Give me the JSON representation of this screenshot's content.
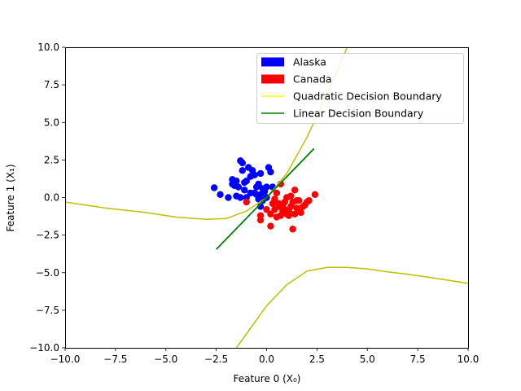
{
  "chart_data": {
    "type": "scatter",
    "xlabel": "Feature 0 (X₀)",
    "ylabel": "Feature 1 (X₁)",
    "xlim": [
      -10,
      10
    ],
    "ylim": [
      -10,
      10
    ],
    "xticks": [
      -10,
      -7.5,
      -5,
      -2.5,
      0,
      2.5,
      5,
      7.5,
      10
    ],
    "yticks": [
      -10,
      -7.5,
      -5,
      -2.5,
      0,
      2.5,
      5,
      7.5,
      10
    ],
    "xtick_labels": [
      "−10.0",
      "−7.5",
      "−5.0",
      "−2.5",
      "0.0",
      "2.5",
      "5.0",
      "7.5",
      "10.0"
    ],
    "ytick_labels": [
      "−10.0",
      "−7.5",
      "−5.0",
      "−2.5",
      "0.0",
      "2.5",
      "5.0",
      "7.5",
      "10.0"
    ],
    "grid": false,
    "legend_position": "top-right",
    "legend": [
      {
        "label": "Alaska",
        "kind": "patch",
        "color": "#0000ff"
      },
      {
        "label": "Canada",
        "kind": "patch",
        "color": "#ff0000"
      },
      {
        "label": "Quadratic Decision Boundary",
        "kind": "line",
        "color": "#ffff00"
      },
      {
        "label": "Linear Decision Boundary",
        "kind": "line",
        "color": "#008000"
      }
    ],
    "series": [
      {
        "name": "Alaska",
        "color": "#0000ff",
        "points": [
          [
            -2.6,
            0.65
          ],
          [
            -2.3,
            0.2
          ],
          [
            -1.9,
            0.0
          ],
          [
            -1.7,
            1.2
          ],
          [
            -1.6,
            0.8
          ],
          [
            -1.5,
            1.1
          ],
          [
            -1.4,
            0.7
          ],
          [
            -1.3,
            2.45
          ],
          [
            -1.2,
            2.3
          ],
          [
            -1.2,
            1.8
          ],
          [
            -1.1,
            1.0
          ],
          [
            -1.0,
            0.0
          ],
          [
            -0.9,
            2.0
          ],
          [
            -0.8,
            0.3
          ],
          [
            -0.7,
            1.8
          ],
          [
            -0.6,
            1.5
          ],
          [
            -0.5,
            0.7
          ],
          [
            -0.4,
            0.9
          ],
          [
            -0.3,
            1.6
          ],
          [
            -0.2,
            -0.2
          ],
          [
            -0.1,
            0.4
          ],
          [
            0.0,
            0.0
          ],
          [
            0.1,
            2.0
          ],
          [
            0.2,
            1.7
          ],
          [
            0.3,
            0.7
          ],
          [
            -1.3,
            0.0
          ],
          [
            -1.5,
            0.1
          ],
          [
            -0.6,
            0.3
          ],
          [
            -0.2,
            0.6
          ],
          [
            -1.0,
            1.1
          ],
          [
            -0.4,
            -0.1
          ],
          [
            -0.8,
            1.4
          ],
          [
            0.0,
            0.7
          ],
          [
            -0.5,
            0.2
          ],
          [
            -0.3,
            -0.6
          ],
          [
            -1.7,
            0.9
          ],
          [
            -1.1,
            0.5
          ],
          [
            -0.3,
            0.2
          ]
        ]
      },
      {
        "name": "Canada",
        "color": "#ff0000",
        "points": [
          [
            -1.0,
            -0.3
          ],
          [
            -0.3,
            -1.5
          ],
          [
            -0.3,
            -1.2
          ],
          [
            0.0,
            -0.8
          ],
          [
            0.2,
            -1.1
          ],
          [
            0.2,
            -1.9
          ],
          [
            0.3,
            -0.4
          ],
          [
            0.4,
            -0.1
          ],
          [
            0.5,
            0.3
          ],
          [
            0.6,
            -0.6
          ],
          [
            0.7,
            0.9
          ],
          [
            0.8,
            -0.5
          ],
          [
            0.9,
            -0.8
          ],
          [
            1.0,
            -1.1
          ],
          [
            1.1,
            -0.9
          ],
          [
            1.2,
            0.1
          ],
          [
            1.3,
            -0.3
          ],
          [
            1.3,
            -2.1
          ],
          [
            1.4,
            0.5
          ],
          [
            1.5,
            -0.7
          ],
          [
            1.6,
            -0.2
          ],
          [
            1.7,
            -1.0
          ],
          [
            1.8,
            -0.6
          ],
          [
            1.9,
            -0.5
          ],
          [
            2.0,
            -0.3
          ],
          [
            2.1,
            -0.2
          ],
          [
            2.4,
            0.2
          ],
          [
            0.5,
            -1.3
          ],
          [
            0.7,
            -1.2
          ],
          [
            0.9,
            -0.3
          ],
          [
            1.0,
            0.0
          ],
          [
            1.1,
            -1.2
          ],
          [
            1.2,
            -0.6
          ],
          [
            0.6,
            -0.4
          ],
          [
            0.8,
            -0.9
          ],
          [
            1.4,
            -1.1
          ],
          [
            0.4,
            -0.8
          ],
          [
            1.5,
            -0.2
          ]
        ]
      }
    ],
    "linear_boundary": {
      "name": "Linear Decision Boundary",
      "color": "#008000",
      "x": [
        -2.5,
        2.35
      ],
      "y": [
        -3.45,
        3.25
      ]
    },
    "quadratic_boundary": {
      "name": "Quadratic Decision Boundary",
      "color": "#bfbf00",
      "branches": [
        [
          [
            -10.0,
            -0.3
          ],
          [
            -8.0,
            -0.7
          ],
          [
            -6.0,
            -1.0
          ],
          [
            -4.5,
            -1.3
          ],
          [
            -3.0,
            -1.45
          ],
          [
            -2.0,
            -1.4
          ],
          [
            -1.0,
            -0.9
          ],
          [
            0.0,
            0.0
          ],
          [
            1.0,
            1.6
          ],
          [
            2.0,
            4.0
          ],
          [
            3.0,
            6.9
          ],
          [
            4.0,
            10.0
          ]
        ],
        [
          [
            -1.5,
            -10.0
          ],
          [
            -0.8,
            -8.7
          ],
          [
            0.0,
            -7.2
          ],
          [
            1.0,
            -5.8
          ],
          [
            2.0,
            -4.9
          ],
          [
            3.0,
            -4.65
          ],
          [
            4.0,
            -4.65
          ],
          [
            5.0,
            -4.75
          ],
          [
            6.0,
            -4.95
          ],
          [
            7.0,
            -5.1
          ],
          [
            8.0,
            -5.3
          ],
          [
            9.0,
            -5.5
          ],
          [
            10.0,
            -5.7
          ]
        ]
      ]
    }
  }
}
